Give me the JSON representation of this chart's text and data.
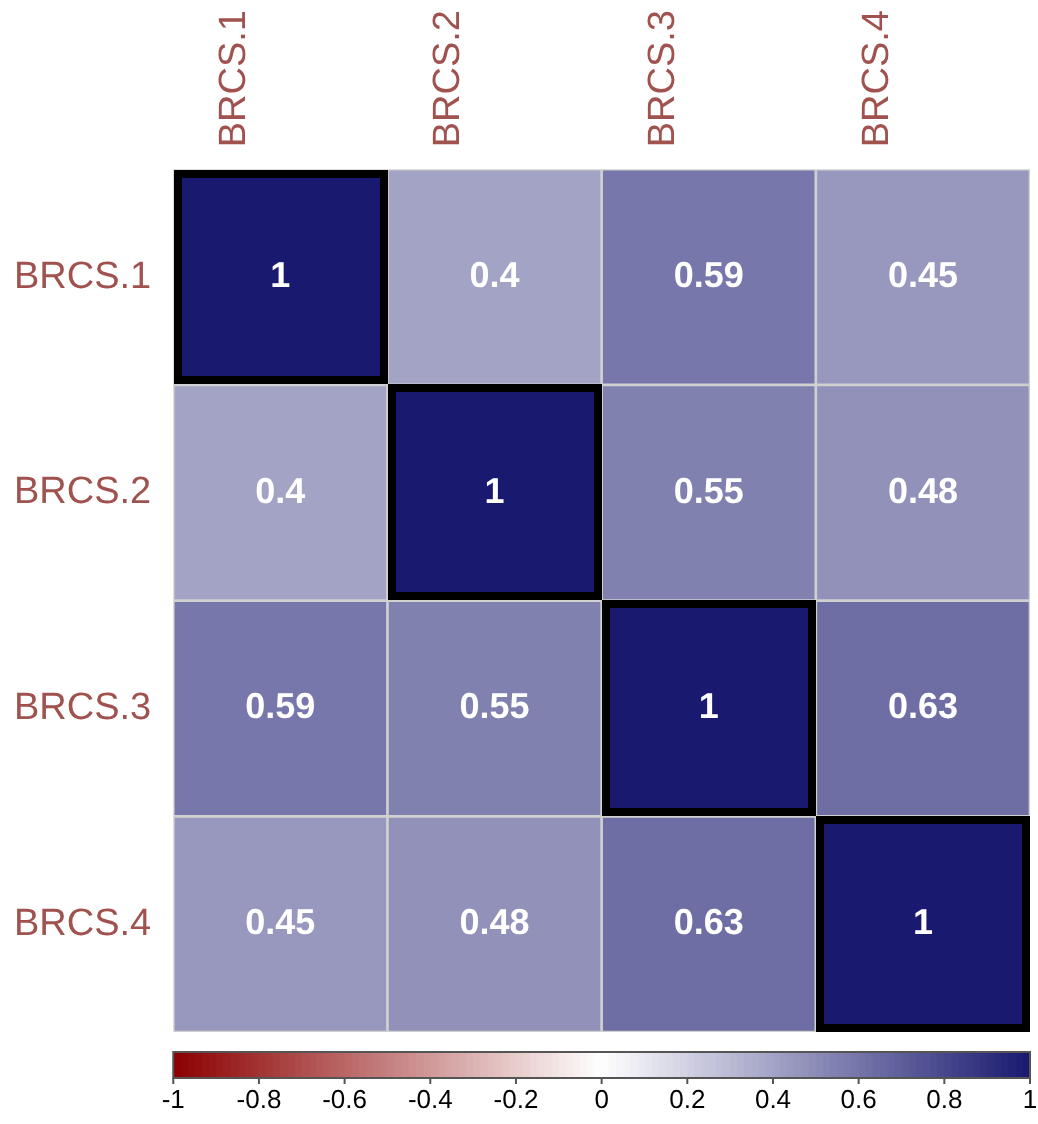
{
  "chart_data": {
    "type": "heatmap",
    "categories": [
      "BRCS.1",
      "BRCS.2",
      "BRCS.3",
      "BRCS.4"
    ],
    "y_categories": [
      "BRCS.1",
      "BRCS.2",
      "BRCS.3",
      "BRCS.4"
    ],
    "cells": [
      [
        1,
        0.4,
        0.59,
        0.45
      ],
      [
        0.4,
        1,
        0.55,
        0.48
      ],
      [
        0.59,
        0.55,
        1,
        0.63
      ],
      [
        0.45,
        0.48,
        0.63,
        1
      ]
    ],
    "clim": [
      -1,
      1
    ],
    "cticks": [
      -1,
      -0.8,
      -0.6,
      -0.4,
      -0.2,
      0,
      0.2,
      0.4,
      0.6,
      0.8,
      1
    ],
    "data_labels": true
  }
}
